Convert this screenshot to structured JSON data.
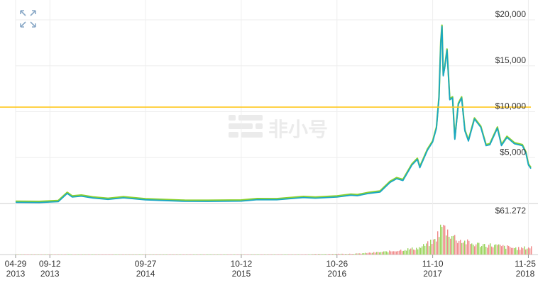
{
  "watermark": "非小号",
  "colors": {
    "price_line": "#1aa7c4",
    "secondary_line": "#8bd12f",
    "reference_line": "#ffc81e",
    "volume_up": "#9ad35c",
    "volume_down": "#f08a8a",
    "grid": "#eeeeee",
    "axis_text": "#333333"
  },
  "icons": {
    "expand": "expand-arrows-icon"
  },
  "chart_data": {
    "type": "line",
    "title": "",
    "xlabel": "",
    "ylabel": "",
    "ylim": [
      0,
      20000
    ],
    "y_ticks": [
      "$5,000",
      "$10,000",
      "$15,000",
      "$20,000"
    ],
    "y_tick_values": [
      5000,
      10000,
      15000,
      20000
    ],
    "x_ticks": [
      {
        "date": "2013-04-29",
        "md": "04-29",
        "year": "2013"
      },
      {
        "date": "2013-09-12",
        "md": "09-12",
        "year": "2013"
      },
      {
        "date": "2014-09-27",
        "md": "09-27",
        "year": "2014"
      },
      {
        "date": "2015-10-12",
        "md": "10-12",
        "year": "2015"
      },
      {
        "date": "2016-10-26",
        "md": "10-26",
        "year": "2016"
      },
      {
        "date": "2017-11-10",
        "md": "11-10",
        "year": "2017"
      },
      {
        "date": "2018-11-25",
        "md": "11-25",
        "year": "2018"
      }
    ],
    "reference_line_value": 10500,
    "volume_max_label": "$61.272",
    "series": [
      {
        "x": [
          "2013-04-29",
          "2013-08-01",
          "2013-10-15",
          "2013-11-20",
          "2013-12-10",
          "2014-01-15",
          "2014-03-01",
          "2014-05-01",
          "2014-07-01",
          "2014-09-27",
          "2014-12-01",
          "2015-03-01",
          "2015-06-01",
          "2015-10-12",
          "2015-12-15",
          "2016-03-01",
          "2016-06-15",
          "2016-08-01",
          "2016-10-26",
          "2016-12-20",
          "2017-01-15",
          "2017-03-01",
          "2017-04-15",
          "2017-05-25",
          "2017-06-20",
          "2017-07-15",
          "2017-08-20",
          "2017-09-10",
          "2017-09-20",
          "2017-10-20",
          "2017-11-10",
          "2017-11-25",
          "2017-12-05",
          "2017-12-12",
          "2017-12-17",
          "2017-12-22",
          "2017-12-28",
          "2018-01-06",
          "2018-01-17",
          "2018-01-28",
          "2018-02-06",
          "2018-02-20",
          "2018-03-05",
          "2018-03-18",
          "2018-04-01",
          "2018-04-25",
          "2018-05-20",
          "2018-06-10",
          "2018-06-25",
          "2018-07-25",
          "2018-08-10",
          "2018-09-01",
          "2018-10-01",
          "2018-11-01",
          "2018-11-15",
          "2018-11-25",
          "2018-12-05"
        ],
        "values": [
          120,
          110,
          200,
          1100,
          700,
          800,
          600,
          450,
          620,
          400,
          330,
          240,
          230,
          260,
          420,
          410,
          650,
          580,
          700,
          900,
          850,
          1100,
          1250,
          2300,
          2700,
          2500,
          4200,
          4800,
          3900,
          5800,
          6700,
          8200,
          11500,
          17500,
          19300,
          13900,
          14800,
          16700,
          11300,
          11500,
          7000,
          10800,
          11500,
          7900,
          6800,
          9200,
          8300,
          6300,
          6400,
          8200,
          6300,
          7200,
          6500,
          6300,
          5500,
          4200,
          3800
        ]
      }
    ],
    "volume": {
      "x": [
        "2013",
        "2014",
        "2015",
        "2016",
        "2017-01",
        "2017-05",
        "2017-09",
        "2017-11",
        "2017-12",
        "2018-01",
        "2018-02",
        "2018-04",
        "2018-07",
        "2018-10",
        "2018-12"
      ],
      "values_relative": [
        0.01,
        0.01,
        0.005,
        0.01,
        0.03,
        0.1,
        0.22,
        0.45,
        0.95,
        0.7,
        0.5,
        0.35,
        0.3,
        0.2,
        0.25
      ]
    }
  }
}
